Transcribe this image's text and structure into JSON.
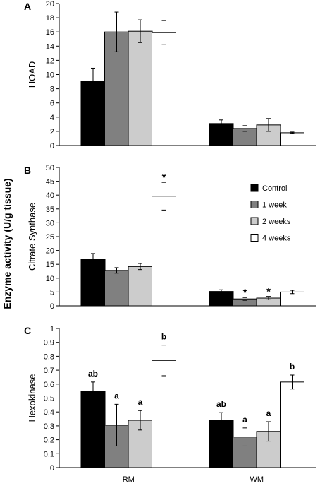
{
  "figure": {
    "shared_ylabel": "Enzyme activity (U/g tissue)",
    "colors": {
      "Control": "#000000",
      "1 week": "#808080",
      "2 weeks": "#cccccc",
      "4 weeks": "#ffffff"
    }
  },
  "chart_data": [
    {
      "type": "bar",
      "panel_letter": "A",
      "ylabel": "HOAD",
      "categories": [
        "RM",
        "WM"
      ],
      "ylim": [
        0,
        20
      ],
      "yticks": [
        "0",
        "2",
        "4",
        "6",
        "8",
        "10",
        "12",
        "14",
        "16",
        "18",
        "20"
      ],
      "grid": false,
      "series": [
        {
          "name": "Control",
          "values": [
            9.1,
            3.1
          ],
          "errors": [
            1.8,
            0.5
          ],
          "labels": [
            "",
            ""
          ]
        },
        {
          "name": "1 week",
          "values": [
            16.0,
            2.4
          ],
          "errors": [
            2.8,
            0.4
          ],
          "labels": [
            "",
            ""
          ]
        },
        {
          "name": "2 weeks",
          "values": [
            16.1,
            2.9
          ],
          "errors": [
            1.6,
            0.9
          ],
          "labels": [
            "",
            ""
          ]
        },
        {
          "name": "4 weeks",
          "values": [
            15.9,
            1.8
          ],
          "errors": [
            1.7,
            0.1
          ],
          "labels": [
            "",
            ""
          ]
        }
      ]
    },
    {
      "type": "bar",
      "panel_letter": "B",
      "ylabel": "Citrate Synthase",
      "categories": [
        "RM",
        "WM"
      ],
      "ylim": [
        0,
        50
      ],
      "yticks": [
        "0",
        "5",
        "10",
        "15",
        "20",
        "25",
        "30",
        "35",
        "40",
        "45",
        "50"
      ],
      "grid": false,
      "legend": {
        "position": "right",
        "entries": [
          "Control",
          "1 week",
          "2 weeks",
          "4 weeks"
        ]
      },
      "series": [
        {
          "name": "Control",
          "values": [
            16.8,
            5.2
          ],
          "errors": [
            2.1,
            0.6
          ],
          "labels": [
            "",
            ""
          ]
        },
        {
          "name": "1 week",
          "values": [
            12.8,
            2.5
          ],
          "errors": [
            1.0,
            0.5
          ],
          "labels": [
            "",
            "*"
          ]
        },
        {
          "name": "2 weeks",
          "values": [
            14.2,
            2.8
          ],
          "errors": [
            1.1,
            0.6
          ],
          "labels": [
            "",
            "*"
          ]
        },
        {
          "name": "4 weeks",
          "values": [
            39.6,
            5.0
          ],
          "errors": [
            5.0,
            0.6
          ],
          "labels": [
            "*",
            ""
          ]
        }
      ]
    },
    {
      "type": "bar",
      "panel_letter": "C",
      "ylabel": "Hexokinase",
      "categories": [
        "RM",
        "WM"
      ],
      "ylim": [
        0,
        1
      ],
      "yticks": [
        "0",
        "0.1",
        "0.2",
        "0.3",
        "0.4",
        "0.5",
        "0.6",
        "0.7",
        "0.8",
        "0.9",
        "1"
      ],
      "grid": false,
      "series": [
        {
          "name": "Control",
          "values": [
            0.55,
            0.34
          ],
          "errors": [
            0.065,
            0.055
          ],
          "labels": [
            "ab",
            "ab"
          ]
        },
        {
          "name": "1 week",
          "values": [
            0.305,
            0.22
          ],
          "errors": [
            0.15,
            0.065
          ],
          "labels": [
            "a",
            "a"
          ]
        },
        {
          "name": "2 weeks",
          "values": [
            0.34,
            0.26
          ],
          "errors": [
            0.07,
            0.07
          ],
          "labels": [
            "a",
            "a"
          ]
        },
        {
          "name": "4 weeks",
          "values": [
            0.77,
            0.615
          ],
          "errors": [
            0.11,
            0.05
          ],
          "labels": [
            "b",
            "b"
          ]
        }
      ]
    }
  ]
}
